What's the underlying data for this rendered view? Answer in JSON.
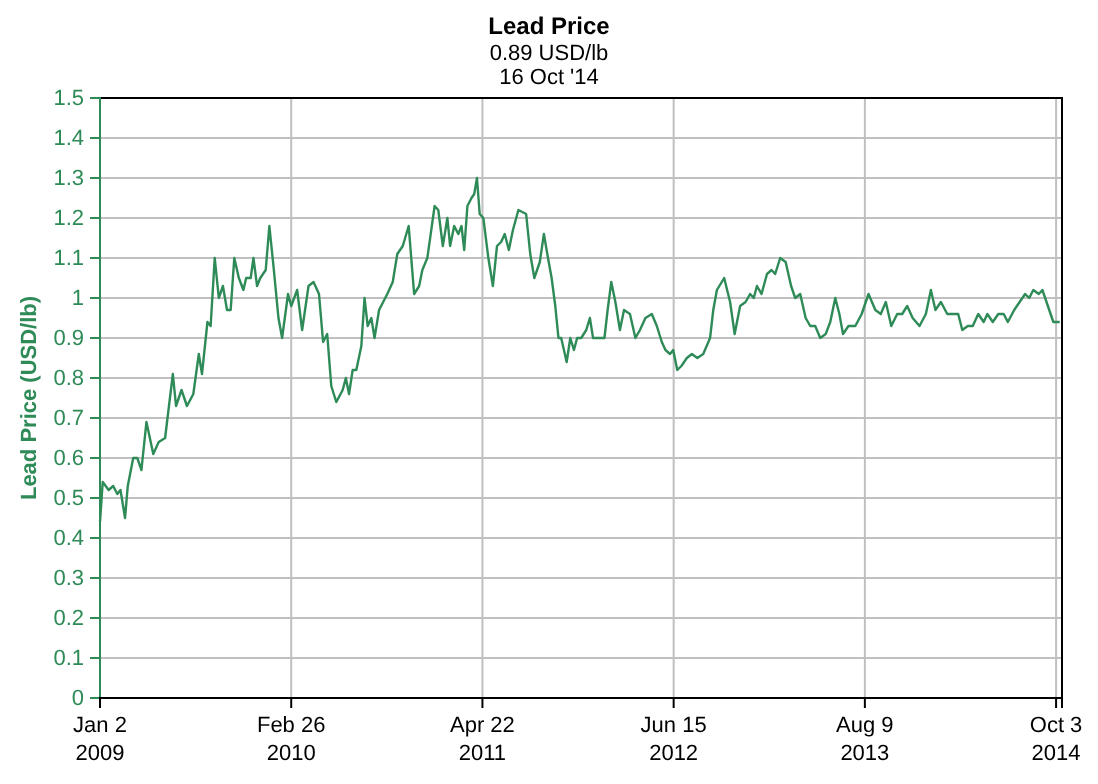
{
  "chart_data": {
    "type": "line",
    "title": "Lead Price",
    "subtitle": "0.89 USD/lb\n16 Oct '14",
    "ylabel": "Lead Price (USD/lb)",
    "xlim": [
      "2009-01-02",
      "2014-10-16"
    ],
    "ylim": [
      0,
      1.5
    ],
    "xticks": [
      {
        "value": "2009-01-02",
        "label": "Jan 2\n2009"
      },
      {
        "value": "2010-02-26",
        "label": "Feb 26\n2010"
      },
      {
        "value": "2011-04-22",
        "label": "Apr 22\n2011"
      },
      {
        "value": "2012-06-15",
        "label": "Jun 15\n2012"
      },
      {
        "value": "2013-08-09",
        "label": "Aug 9\n2013"
      },
      {
        "value": "2014-10-03",
        "label": "Oct 3\n2014"
      }
    ],
    "yticks": [
      0,
      0.1,
      0.2,
      0.3,
      0.4,
      0.5,
      0.6,
      0.7,
      0.8,
      0.9,
      1,
      1.1,
      1.2,
      1.3,
      1.4,
      1.5
    ],
    "grid": true,
    "x": [
      "2009-01-02",
      "2009-01-08",
      "2009-01-21",
      "2009-01-31",
      "2009-02-09",
      "2009-02-16",
      "2009-02-26",
      "2009-03-04",
      "2009-03-16",
      "2009-03-25",
      "2009-04-03",
      "2009-04-14",
      "2009-04-29",
      "2009-05-11",
      "2009-05-25",
      "2009-06-11",
      "2009-06-18",
      "2009-06-30",
      "2009-07-12",
      "2009-07-26",
      "2009-08-07",
      "2009-08-14",
      "2009-08-26",
      "2009-09-02",
      "2009-09-11",
      "2009-09-20",
      "2009-09-29",
      "2009-10-08",
      "2009-10-16",
      "2009-10-24",
      "2009-11-03",
      "2009-11-13",
      "2009-11-19",
      "2009-11-29",
      "2009-12-05",
      "2009-12-13",
      "2009-12-20",
      "2010-01-01",
      "2010-01-09",
      "2010-01-18",
      "2010-01-29",
      "2010-02-06",
      "2010-02-19",
      "2010-02-26",
      "2010-03-11",
      "2010-03-22",
      "2010-04-05",
      "2010-04-16",
      "2010-04-28",
      "2010-05-07",
      "2010-05-16",
      "2010-05-25",
      "2010-06-05",
      "2010-06-19",
      "2010-06-26",
      "2010-07-03",
      "2010-07-11",
      "2010-07-19",
      "2010-07-30",
      "2010-08-06",
      "2010-08-13",
      "2010-08-21",
      "2010-08-28",
      "2010-09-07",
      "2010-09-25",
      "2010-10-07",
      "2010-10-17",
      "2010-10-29",
      "2010-11-11",
      "2010-11-23",
      "2010-12-04",
      "2010-12-11",
      "2010-12-22",
      "2011-01-07",
      "2011-01-15",
      "2011-01-25",
      "2011-02-04",
      "2011-02-10",
      "2011-02-19",
      "2011-02-28",
      "2011-03-07",
      "2011-03-13",
      "2011-03-20",
      "2011-03-29",
      "2011-04-04",
      "2011-04-10",
      "2011-04-16",
      "2011-04-24",
      "2011-05-05",
      "2011-05-15",
      "2011-05-24",
      "2011-06-02",
      "2011-06-10",
      "2011-06-19",
      "2011-06-28",
      "2011-07-10",
      "2011-07-27",
      "2011-08-05",
      "2011-08-14",
      "2011-08-26",
      "2011-09-04",
      "2011-09-13",
      "2011-09-21",
      "2011-09-29",
      "2011-10-06",
      "2011-10-12",
      "2011-10-16",
      "2011-10-24",
      "2011-11-01",
      "2011-11-09",
      "2011-11-16",
      "2011-11-25",
      "2011-12-06",
      "2011-12-14",
      "2011-12-21",
      "2012-01-05",
      "2012-01-15",
      "2012-01-22",
      "2012-01-30",
      "2012-02-08",
      "2012-02-18",
      "2012-02-27",
      "2012-03-11",
      "2012-03-23",
      "2012-04-02",
      "2012-04-14",
      "2012-04-28",
      "2012-05-09",
      "2012-05-20",
      "2012-05-28",
      "2012-06-07",
      "2012-06-14",
      "2012-06-23",
      "2012-07-02",
      "2012-07-14",
      "2012-07-25",
      "2012-08-06",
      "2012-08-19",
      "2012-09-03",
      "2012-09-10",
      "2012-09-18",
      "2012-10-04",
      "2012-10-17",
      "2012-10-27",
      "2012-11-08",
      "2012-11-20",
      "2012-11-30",
      "2012-12-08",
      "2012-12-15",
      "2012-12-25",
      "2013-01-06",
      "2013-01-16",
      "2013-01-24",
      "2013-02-04",
      "2013-02-16",
      "2013-02-28",
      "2013-03-09",
      "2013-03-20",
      "2013-04-01",
      "2013-04-11",
      "2013-04-22",
      "2013-05-03",
      "2013-05-15",
      "2013-05-25",
      "2013-06-05",
      "2013-06-14",
      "2013-06-22",
      "2013-07-04",
      "2013-07-19",
      "2013-08-02",
      "2013-08-17",
      "2013-09-01",
      "2013-09-13",
      "2013-09-24",
      "2013-10-06",
      "2013-10-19",
      "2013-10-30",
      "2013-11-10",
      "2013-11-22",
      "2013-12-07",
      "2013-12-21",
      "2014-01-01",
      "2014-01-11",
      "2014-01-23",
      "2014-02-06",
      "2014-02-18",
      "2014-03-02",
      "2014-03-11",
      "2014-03-23",
      "2014-04-03",
      "2014-04-15",
      "2014-04-27",
      "2014-05-05",
      "2014-05-17",
      "2014-05-29",
      "2014-06-10",
      "2014-06-19",
      "2014-07-03",
      "2014-07-15",
      "2014-07-27",
      "2014-08-05",
      "2014-08-14",
      "2014-08-26",
      "2014-09-03",
      "2014-09-15",
      "2014-09-27",
      "2014-10-11"
    ],
    "series": [
      {
        "color": "#2e8b57",
        "values": [
          0.44,
          0.54,
          0.52,
          0.53,
          0.51,
          0.52,
          0.45,
          0.53,
          0.6,
          0.6,
          0.57,
          0.69,
          0.61,
          0.64,
          0.65,
          0.81,
          0.73,
          0.77,
          0.73,
          0.76,
          0.86,
          0.81,
          0.94,
          0.93,
          1.1,
          1.0,
          1.03,
          0.97,
          0.97,
          1.1,
          1.05,
          1.02,
          1.05,
          1.05,
          1.1,
          1.03,
          1.05,
          1.07,
          1.18,
          1.08,
          0.95,
          0.9,
          1.01,
          0.98,
          1.02,
          0.92,
          1.03,
          1.04,
          1.01,
          0.89,
          0.91,
          0.78,
          0.74,
          0.77,
          0.8,
          0.76,
          0.82,
          0.82,
          0.88,
          1.0,
          0.93,
          0.95,
          0.9,
          0.97,
          1.01,
          1.04,
          1.11,
          1.13,
          1.18,
          1.01,
          1.03,
          1.07,
          1.1,
          1.23,
          1.22,
          1.13,
          1.2,
          1.13,
          1.18,
          1.16,
          1.18,
          1.12,
          1.23,
          1.25,
          1.26,
          1.3,
          1.21,
          1.2,
          1.1,
          1.03,
          1.13,
          1.14,
          1.16,
          1.12,
          1.17,
          1.22,
          1.21,
          1.11,
          1.05,
          1.09,
          1.16,
          1.1,
          1.05,
          0.98,
          0.9,
          0.9,
          0.88,
          0.84,
          0.9,
          0.87,
          0.9,
          0.9,
          0.92,
          0.95,
          0.9,
          0.9,
          0.9,
          0.97,
          1.04,
          0.99,
          0.92,
          0.97,
          0.96,
          0.9,
          0.92,
          0.95,
          0.96,
          0.93,
          0.89,
          0.87,
          0.86,
          0.87,
          0.82,
          0.83,
          0.85,
          0.86,
          0.85,
          0.86,
          0.9,
          0.97,
          1.02,
          1.05,
          0.99,
          0.91,
          0.98,
          0.99,
          1.01,
          1.0,
          1.03,
          1.01,
          1.06,
          1.07,
          1.06,
          1.1,
          1.09,
          1.03,
          1.0,
          1.01,
          0.95,
          0.93,
          0.93,
          0.9,
          0.91,
          0.94,
          1.0,
          0.96,
          0.91,
          0.93,
          0.93,
          0.96,
          1.01,
          0.97,
          0.96,
          0.99,
          0.93,
          0.96,
          0.96,
          0.98,
          0.95,
          0.93,
          0.96,
          1.02,
          0.97,
          0.99,
          0.96,
          0.96,
          0.96,
          0.92,
          0.93,
          0.93,
          0.96,
          0.94,
          0.96,
          0.94,
          0.96,
          0.96,
          0.94,
          0.97,
          0.99,
          1.01,
          1.0,
          1.02,
          1.01,
          1.02,
          0.98,
          0.94,
          0.94
        ]
      }
    ]
  }
}
